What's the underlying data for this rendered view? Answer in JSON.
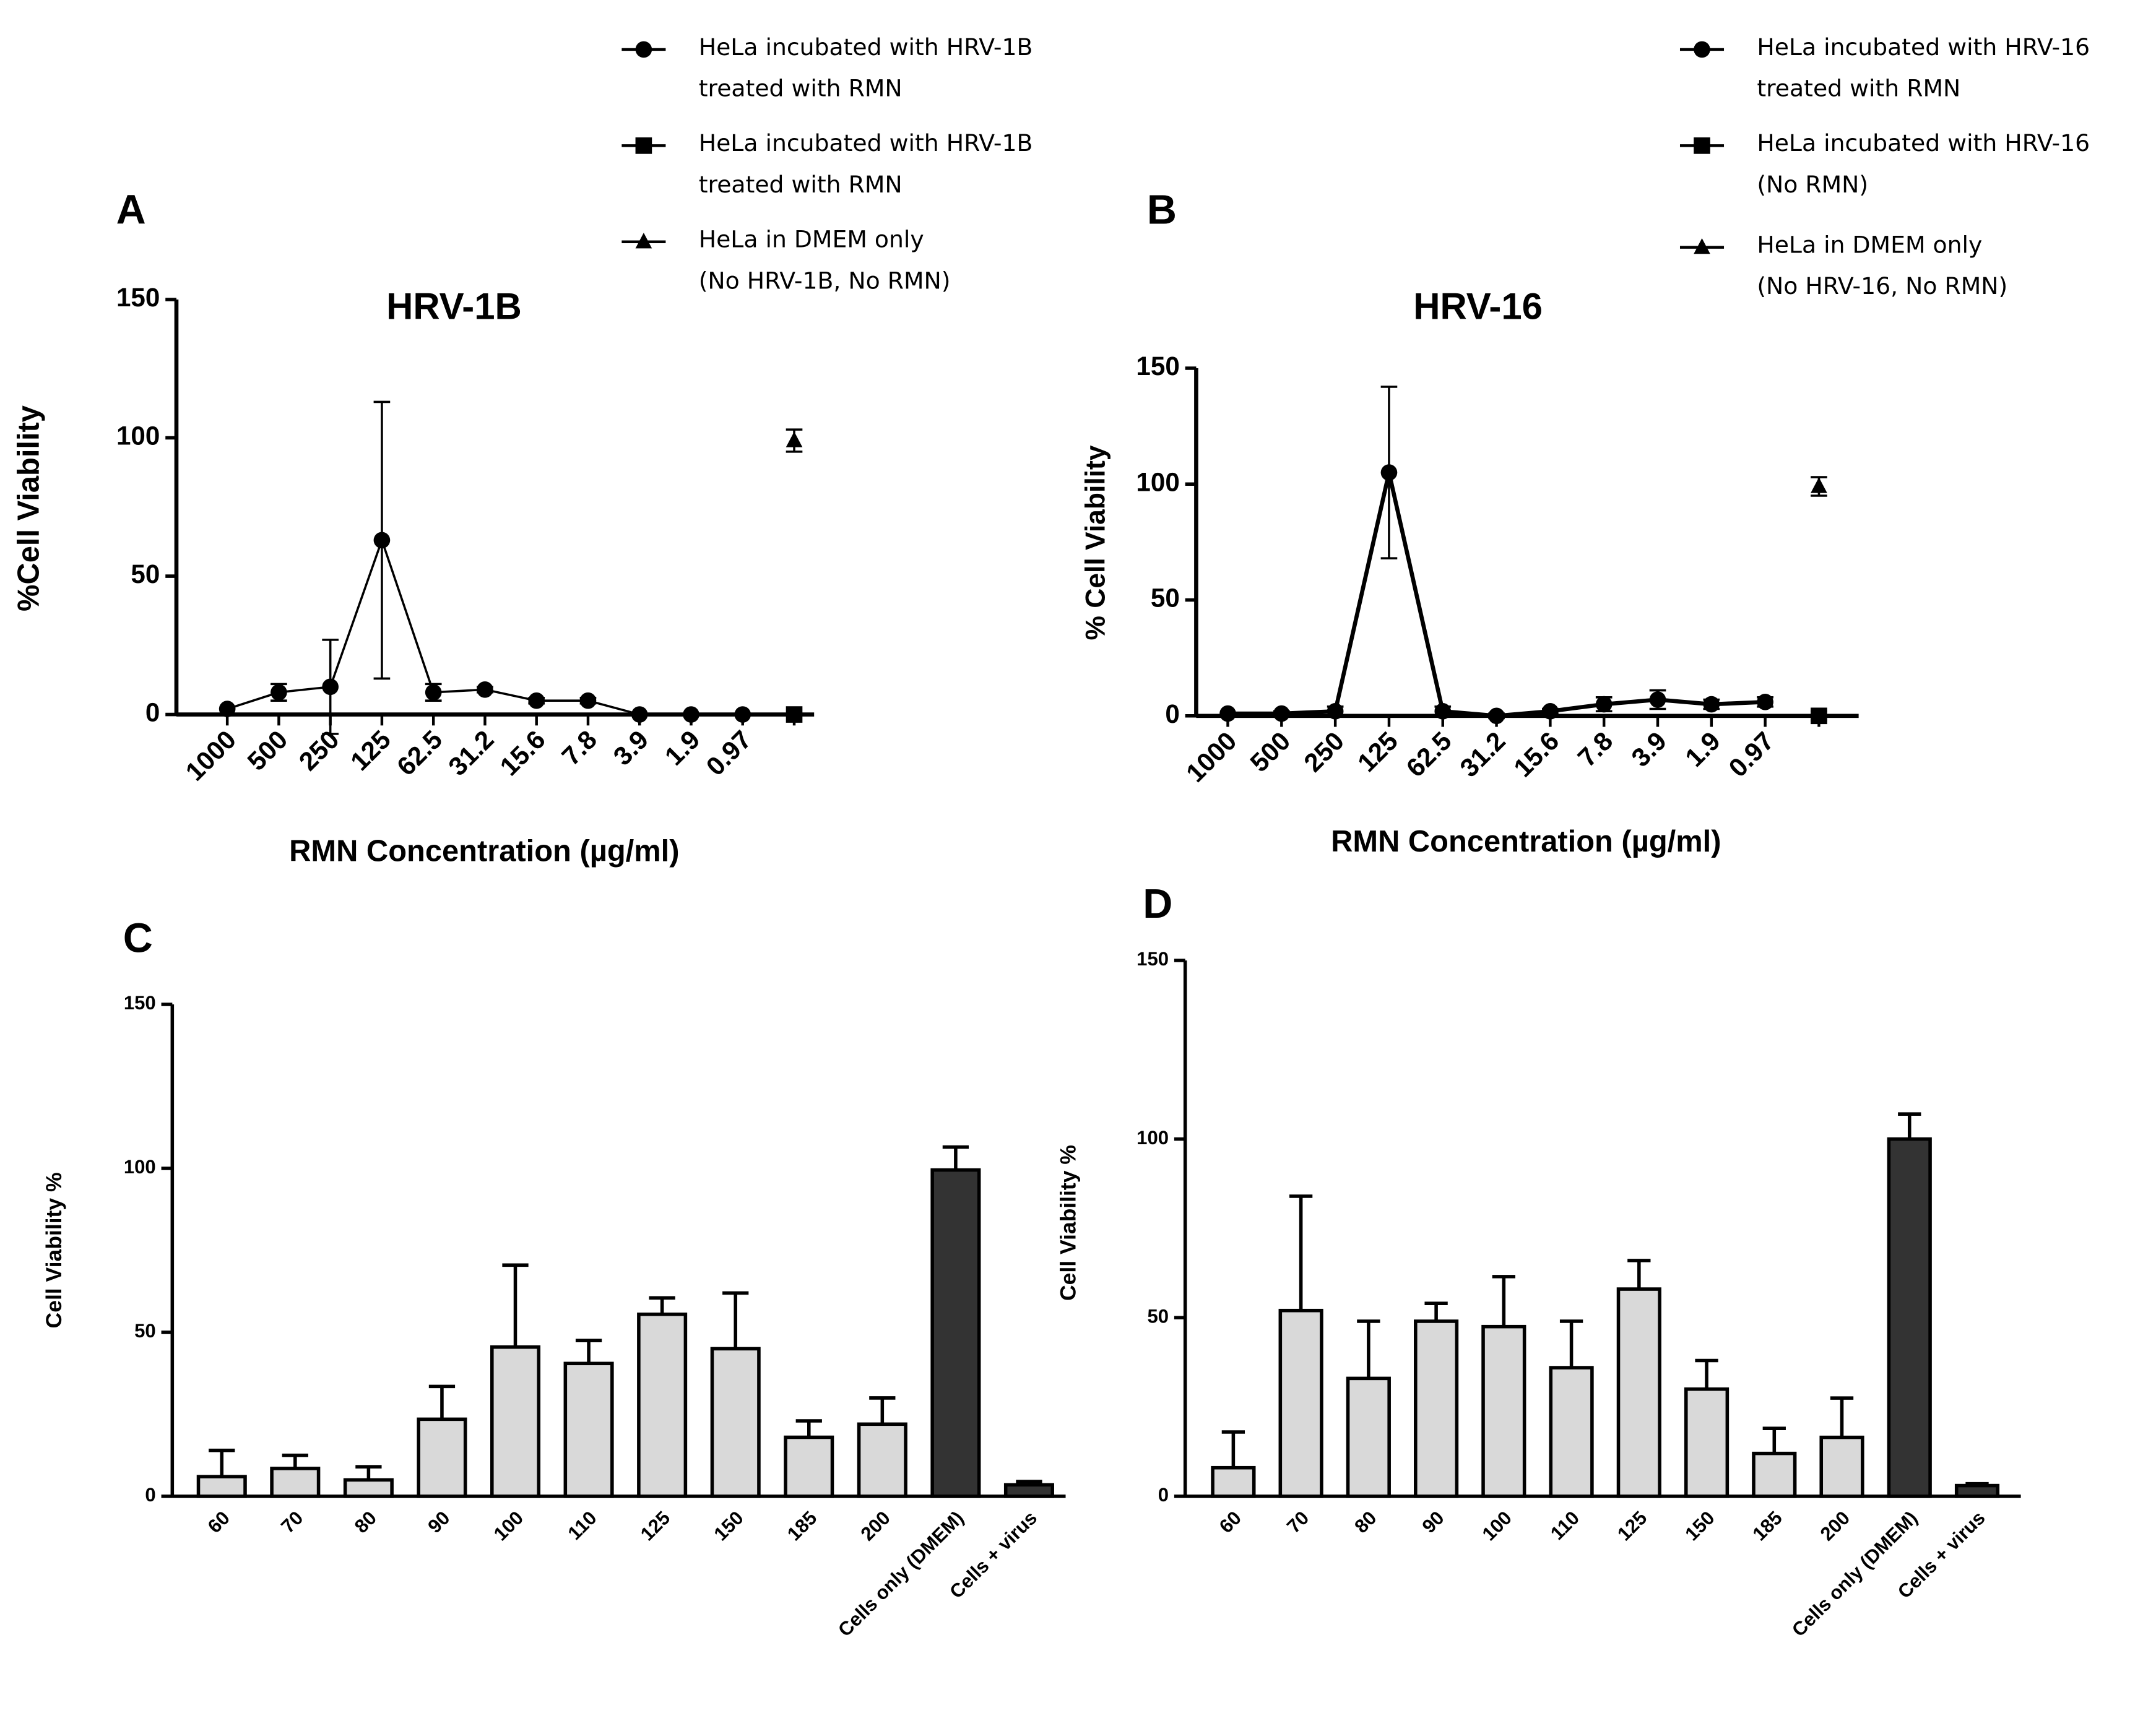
{
  "chart_data": [
    {
      "type": "line",
      "panel": "A",
      "title": "HRV-1B",
      "xlabel": "RMN Concentration (µg/ml)",
      "ylabel": "%Cell Viability",
      "categories": [
        "1000",
        "500",
        "250",
        "125",
        "62.5",
        "31.2",
        "15.6",
        "7.8",
        "3.9",
        "1.9",
        "0.97",
        null
      ],
      "ylim": [
        0,
        150
      ],
      "yticks": [
        0,
        50,
        100,
        150
      ],
      "series": [
        {
          "name": "HeLa incubated with HRV-1B\ntreated with RMN",
          "marker": "circle",
          "color": "#000000",
          "values": [
            2,
            8,
            10,
            63,
            8,
            9,
            5,
            5,
            0,
            0,
            0,
            null
          ],
          "errors": [
            0,
            3,
            17,
            50,
            3,
            1,
            1,
            1,
            0,
            0,
            0,
            null
          ]
        },
        {
          "name": "HeLa incubated with HRV-1B\ntreated with RMN",
          "marker": "square",
          "color": "#000000",
          "values": [
            null,
            null,
            null,
            null,
            null,
            null,
            null,
            null,
            null,
            null,
            null,
            0
          ],
          "errors": [
            null,
            null,
            null,
            null,
            null,
            null,
            null,
            null,
            null,
            null,
            null,
            0
          ]
        },
        {
          "name": "HeLa in DMEM only\n(No HRV-1B, No RMN)",
          "marker": "triangle",
          "color": "#000000",
          "values": [
            null,
            null,
            null,
            null,
            null,
            null,
            null,
            null,
            null,
            null,
            null,
            99
          ],
          "errors": [
            null,
            null,
            null,
            null,
            null,
            null,
            null,
            null,
            null,
            null,
            null,
            4
          ]
        }
      ]
    },
    {
      "type": "line",
      "panel": "B",
      "title": "HRV-16",
      "xlabel": "RMN Concentration (µg/ml)",
      "ylabel": "% Cell Viability",
      "categories": [
        "1000",
        "500",
        "250",
        "125",
        "62.5",
        "31.2",
        "15.6",
        "7.8",
        "3.9",
        "1.9",
        "0.97",
        null
      ],
      "ylim": [
        0,
        150
      ],
      "yticks": [
        0,
        50,
        100,
        150
      ],
      "series": [
        {
          "name": "HeLa incubated with HRV-16\ntreated with RMN",
          "marker": "circle",
          "color": "#000000",
          "values": [
            1,
            1,
            2,
            105,
            2,
            0,
            2,
            5,
            7,
            5,
            6,
            null
          ],
          "errors": [
            0,
            1,
            2,
            37,
            2,
            1,
            1,
            3,
            4,
            2,
            2,
            null
          ]
        },
        {
          "name": "HeLa incubated with HRV-16\n(No RMN)",
          "marker": "square",
          "color": "#000000",
          "values": [
            null,
            null,
            null,
            null,
            null,
            null,
            null,
            null,
            null,
            null,
            null,
            0
          ],
          "errors": [
            null,
            null,
            null,
            null,
            null,
            null,
            null,
            null,
            null,
            null,
            null,
            2
          ]
        },
        {
          "name": "HeLa in DMEM only\n(No HRV-16, No RMN)",
          "marker": "triangle",
          "color": "#000000",
          "values": [
            null,
            null,
            null,
            null,
            null,
            null,
            null,
            null,
            null,
            null,
            null,
            99
          ],
          "errors": [
            null,
            null,
            null,
            null,
            null,
            null,
            null,
            null,
            null,
            null,
            null,
            4
          ]
        }
      ]
    },
    {
      "type": "bar",
      "panel": "C",
      "ylabel": "Cell Viability %",
      "categories": [
        "60",
        "70",
        "80",
        "90",
        "100",
        "110",
        "125",
        "150",
        "185",
        "200",
        "Cells only (DMEM)",
        "Cells + virus"
      ],
      "values": [
        6,
        8.5,
        5,
        23.5,
        45.5,
        40.5,
        55.5,
        45,
        18,
        22,
        99.5,
        3.5
      ],
      "errors": [
        8,
        4,
        4,
        10,
        25,
        7,
        5,
        17,
        5,
        8,
        7,
        1
      ],
      "colors": [
        "#d9d9d9",
        "#d9d9d9",
        "#d9d9d9",
        "#d9d9d9",
        "#d9d9d9",
        "#d9d9d9",
        "#d9d9d9",
        "#d9d9d9",
        "#d9d9d9",
        "#d9d9d9",
        "#333333",
        "#333333"
      ],
      "ylim": [
        0,
        150
      ],
      "yticks": [
        0,
        50,
        100,
        150
      ]
    },
    {
      "type": "bar",
      "panel": "D",
      "ylabel": "Cell Viability %",
      "categories": [
        "60",
        "70",
        "80",
        "90",
        "100",
        "110",
        "125",
        "150",
        "185",
        "200",
        "Cells only (DMEM)",
        "Cells + virus"
      ],
      "values": [
        8,
        52,
        33,
        49,
        47.5,
        36,
        58,
        30,
        12,
        16.5,
        100,
        3
      ],
      "errors": [
        10,
        32,
        16,
        5,
        14,
        13,
        8,
        8,
        7,
        11,
        7,
        0.5
      ],
      "colors": [
        "#d9d9d9",
        "#d9d9d9",
        "#d9d9d9",
        "#d9d9d9",
        "#d9d9d9",
        "#d9d9d9",
        "#d9d9d9",
        "#d9d9d9",
        "#d9d9d9",
        "#d9d9d9",
        "#333333",
        "#333333"
      ],
      "ylim": [
        0,
        150
      ],
      "yticks": [
        0,
        50,
        100,
        150
      ]
    }
  ]
}
